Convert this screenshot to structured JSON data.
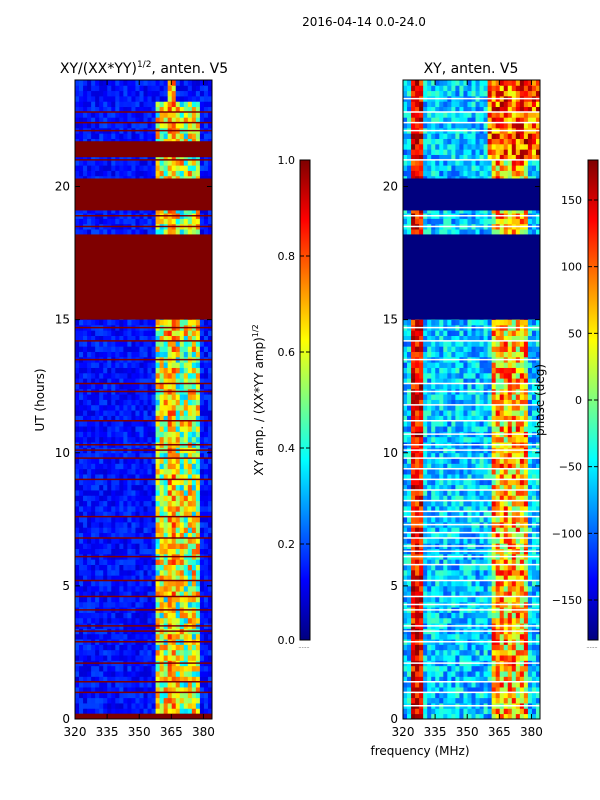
{
  "figure_title": "2016-04-14 0.0-24.0",
  "colors": {
    "jet": [
      "#00007f",
      "#0000ff",
      "#007fff",
      "#00ffff",
      "#7fff7f",
      "#ffff00",
      "#ff7f00",
      "#ff0000",
      "#7f0000"
    ],
    "flag": "#7f0000",
    "background": "#ffffff",
    "axis": "#000000",
    "blank_line": "#ffffff"
  },
  "chart_data": [
    {
      "type": "heatmap",
      "name": "normalized-amplitude",
      "title": "XY/(XX*YY)",
      "title_exponent": "1/2",
      "title_suffix": ", anten. V5",
      "xlabel": "",
      "ylabel": "UT (hours)",
      "xlim": [
        320,
        384
      ],
      "ylim": [
        0,
        24
      ],
      "xticks": [
        320,
        335,
        350,
        365,
        380
      ],
      "yticks": [
        0,
        5,
        10,
        15,
        20
      ],
      "flagged_bands_hours": [
        [
          0,
          0.2
        ],
        [
          15.0,
          18.2
        ],
        [
          19.1,
          20.3
        ],
        [
          21.1,
          21.7
        ]
      ],
      "flag_lines_hours": [
        1.0,
        1.4,
        2.1,
        2.9,
        3.3,
        3.5,
        4.1,
        4.6,
        5.2,
        6.1,
        6.8,
        7.6,
        9.0,
        9.8,
        10.1,
        10.3,
        11.2,
        12.3,
        12.6,
        13.5,
        14.2,
        14.7,
        18.5,
        18.9,
        21.0,
        22.1,
        22.4,
        22.8
      ],
      "description_values": {
        "baseline_level": 0.1,
        "bright_channel_range_mhz": [
          358,
          378
        ],
        "bright_level": 0.5
      }
    },
    {
      "type": "colorbar",
      "name": "amplitude-colorbar",
      "label": "XY amp. / (XX*YY amp)",
      "label_exponent": "1/2",
      "range": [
        0.0,
        1.0
      ],
      "ticks": [
        "0.0",
        "0.2",
        "0.4",
        "0.6",
        "0.8",
        "1.0"
      ],
      "tick_values": [
        0.0,
        0.2,
        0.4,
        0.6,
        0.8,
        1.0
      ]
    },
    {
      "type": "heatmap",
      "name": "phase",
      "title": "XY, anten. V5",
      "xlabel": "frequency (MHz)",
      "ylabel": "",
      "xlim": [
        320,
        384
      ],
      "ylim": [
        0,
        24
      ],
      "xticks": [
        320,
        335,
        350,
        365,
        380
      ],
      "yticks": [
        0,
        5,
        10,
        15,
        20
      ],
      "flagged_bands_hours": [
        [
          15.0,
          18.2
        ],
        [
          19.1,
          20.3
        ]
      ],
      "flag_lines_hours": [
        0.5,
        1.0,
        1.4,
        2.1,
        2.9,
        3.3,
        3.5,
        4.1,
        4.3,
        4.6,
        5.2,
        5.8,
        6.1,
        6.3,
        6.5,
        6.8,
        7.0,
        7.3,
        7.6,
        7.8,
        8.2,
        8.6,
        9.0,
        9.4,
        9.8,
        10.1,
        10.3,
        10.7,
        11.2,
        11.8,
        12.3,
        12.6,
        13.5,
        14.2,
        14.7,
        18.5,
        18.9,
        21.0,
        22.1,
        22.4,
        22.8,
        23.3
      ]
    },
    {
      "type": "colorbar",
      "name": "phase-colorbar",
      "label": "phase (deg)",
      "range": [
        -180,
        180
      ],
      "ticks": [
        "−150",
        "−100",
        "−50",
        "0",
        "50",
        "100",
        "150"
      ],
      "tick_values": [
        -150,
        -100,
        -50,
        0,
        50,
        100,
        150
      ]
    }
  ]
}
